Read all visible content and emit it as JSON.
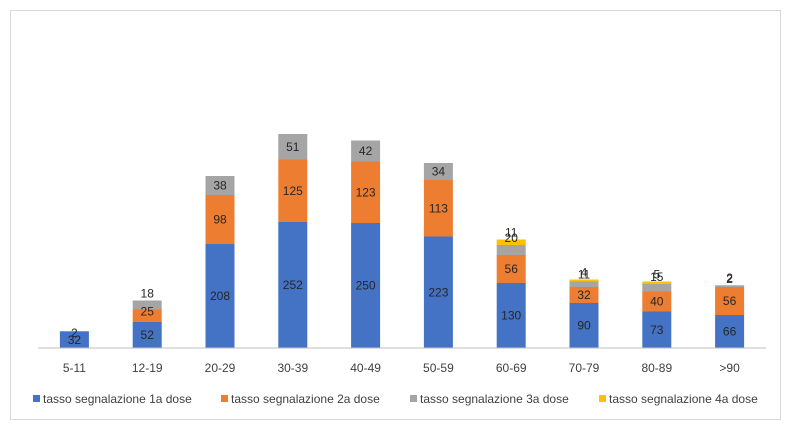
{
  "chart_data": {
    "type": "bar",
    "stacked": true,
    "title": "",
    "xlabel": "",
    "ylabel": "",
    "ylim": [
      0,
      470
    ],
    "grid": false,
    "legend_position": "bottom",
    "categories": [
      "5-11",
      "12-19",
      "20-29",
      "30-39",
      "40-49",
      "50-59",
      "60-69",
      "70-79",
      "80-89",
      ">90"
    ],
    "series": [
      {
        "name": "tasso segnalazione 1a dose",
        "color": "#4472c4",
        "values": [
          32,
          52,
          208,
          252,
          250,
          223,
          130,
          90,
          73,
          66
        ]
      },
      {
        "name": "tasso segnalazione 2a dose",
        "color": "#ed7d31",
        "values": [
          2,
          25,
          98,
          125,
          123,
          113,
          56,
          32,
          40,
          56
        ]
      },
      {
        "name": "tasso segnalazione 3a dose",
        "color": "#a5a5a5",
        "values": [
          0,
          18,
          38,
          51,
          42,
          34,
          20,
          11,
          15,
          2
        ]
      },
      {
        "name": "tasso segnalazione 4a dose",
        "color": "#ffc000",
        "values": [
          0,
          0,
          0,
          0,
          0,
          0,
          11,
          4,
          5,
          2
        ]
      }
    ]
  }
}
